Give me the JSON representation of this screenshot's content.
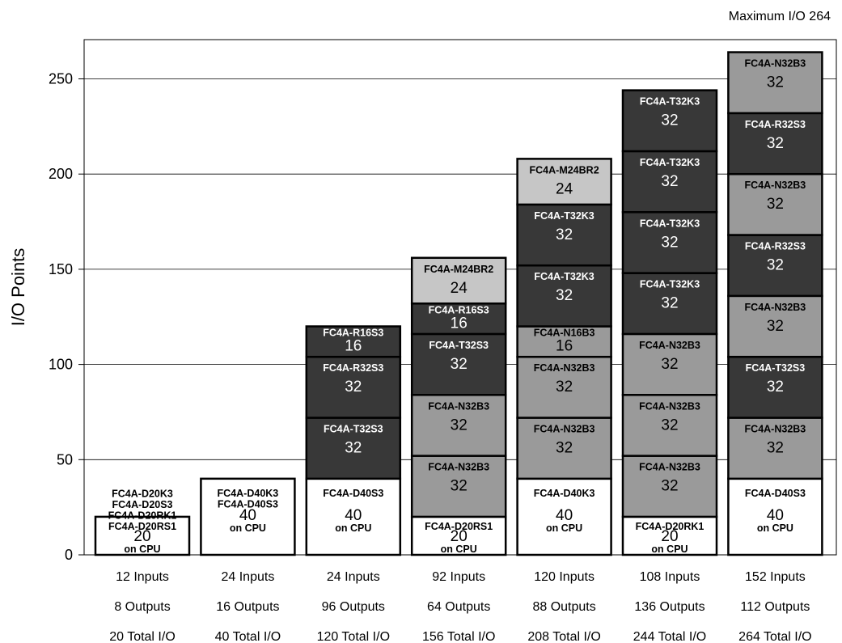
{
  "max_label": "Maximum I/O 264",
  "chart_data": {
    "type": "bar",
    "stacked": true,
    "ylabel": "I/O Points",
    "ylim": [
      0,
      270
    ],
    "yticks": [
      0,
      50,
      100,
      150,
      200,
      250
    ],
    "grid": "horizontal",
    "colors": {
      "cpu": "#ffffff",
      "T": "#383838",
      "R": "#383838",
      "N": "#9a9a9a",
      "M": "#c6c6c6",
      "border": "#000000"
    },
    "configs": [
      {
        "base": {
          "labels": [
            "FC4A-D20K3",
            "FC4A-D20S3",
            "FC4A-D20RK1",
            "FC4A-D20RS1"
          ],
          "value": 20,
          "cpu": "on CPU"
        },
        "modules": [],
        "inputs": "12 Inputs",
        "outputs": "8 Outputs",
        "total": "20 Total I/O"
      },
      {
        "base": {
          "labels": [
            "FC4A-D40K3",
            "FC4A-D40S3"
          ],
          "value": 40,
          "cpu": "on CPU"
        },
        "modules": [],
        "inputs": "24 Inputs",
        "outputs": "16 Outputs",
        "total": "40 Total I/O"
      },
      {
        "base": {
          "labels": [
            "FC4A-D40S3"
          ],
          "value": 40,
          "cpu": "on CPU"
        },
        "modules": [
          {
            "name": "FC4A-T32S3",
            "value": 32,
            "kind": "T"
          },
          {
            "name": "FC4A-R32S3",
            "value": 32,
            "kind": "R"
          },
          {
            "name": "FC4A-R16S3",
            "value": 16,
            "kind": "R"
          }
        ],
        "inputs": "24 Inputs",
        "outputs": "96 Outputs",
        "total": "120 Total I/O"
      },
      {
        "base": {
          "labels": [
            "FC4A-D20RS1"
          ],
          "value": 20,
          "cpu": "on CPU"
        },
        "modules": [
          {
            "name": "FC4A-N32B3",
            "value": 32,
            "kind": "N"
          },
          {
            "name": "FC4A-N32B3",
            "value": 32,
            "kind": "N"
          },
          {
            "name": "FC4A-T32S3",
            "value": 32,
            "kind": "T"
          },
          {
            "name": "FC4A-R16S3",
            "value": 16,
            "kind": "R"
          },
          {
            "name": "FC4A-M24BR2",
            "value": 24,
            "kind": "M"
          }
        ],
        "inputs": "92 Inputs",
        "outputs": "64 Outputs",
        "total": "156 Total I/O"
      },
      {
        "base": {
          "labels": [
            "FC4A-D40K3"
          ],
          "value": 40,
          "cpu": "on CPU"
        },
        "modules": [
          {
            "name": "FC4A-N32B3",
            "value": 32,
            "kind": "N"
          },
          {
            "name": "FC4A-N32B3",
            "value": 32,
            "kind": "N"
          },
          {
            "name": "FC4A-N16B3",
            "value": 16,
            "kind": "N"
          },
          {
            "name": "FC4A-T32K3",
            "value": 32,
            "kind": "T"
          },
          {
            "name": "FC4A-T32K3",
            "value": 32,
            "kind": "T"
          },
          {
            "name": "FC4A-M24BR2",
            "value": 24,
            "kind": "M"
          }
        ],
        "inputs": "120 Inputs",
        "outputs": "88 Outputs",
        "total": "208 Total I/O"
      },
      {
        "base": {
          "labels": [
            "FC4A-D20RK1"
          ],
          "value": 20,
          "cpu": "on CPU"
        },
        "modules": [
          {
            "name": "FC4A-N32B3",
            "value": 32,
            "kind": "N"
          },
          {
            "name": "FC4A-N32B3",
            "value": 32,
            "kind": "N"
          },
          {
            "name": "FC4A-N32B3",
            "value": 32,
            "kind": "N"
          },
          {
            "name": "FC4A-T32K3",
            "value": 32,
            "kind": "T"
          },
          {
            "name": "FC4A-T32K3",
            "value": 32,
            "kind": "T"
          },
          {
            "name": "FC4A-T32K3",
            "value": 32,
            "kind": "T"
          },
          {
            "name": "FC4A-T32K3",
            "value": 32,
            "kind": "T"
          }
        ],
        "inputs": "108 Inputs",
        "outputs": "136 Outputs",
        "total": "244 Total I/O"
      },
      {
        "base": {
          "labels": [
            "FC4A-D40S3"
          ],
          "value": 40,
          "cpu": "on CPU"
        },
        "modules": [
          {
            "name": "FC4A-N32B3",
            "value": 32,
            "kind": "N"
          },
          {
            "name": "FC4A-T32S3",
            "value": 32,
            "kind": "T"
          },
          {
            "name": "FC4A-N32B3",
            "value": 32,
            "kind": "N"
          },
          {
            "name": "FC4A-R32S3",
            "value": 32,
            "kind": "R"
          },
          {
            "name": "FC4A-N32B3",
            "value": 32,
            "kind": "N"
          },
          {
            "name": "FC4A-R32S3",
            "value": 32,
            "kind": "R"
          },
          {
            "name": "FC4A-N32B3",
            "value": 32,
            "kind": "N"
          }
        ],
        "inputs": "152 Inputs",
        "outputs": "112 Outputs",
        "total": "264 Total I/O"
      }
    ]
  }
}
